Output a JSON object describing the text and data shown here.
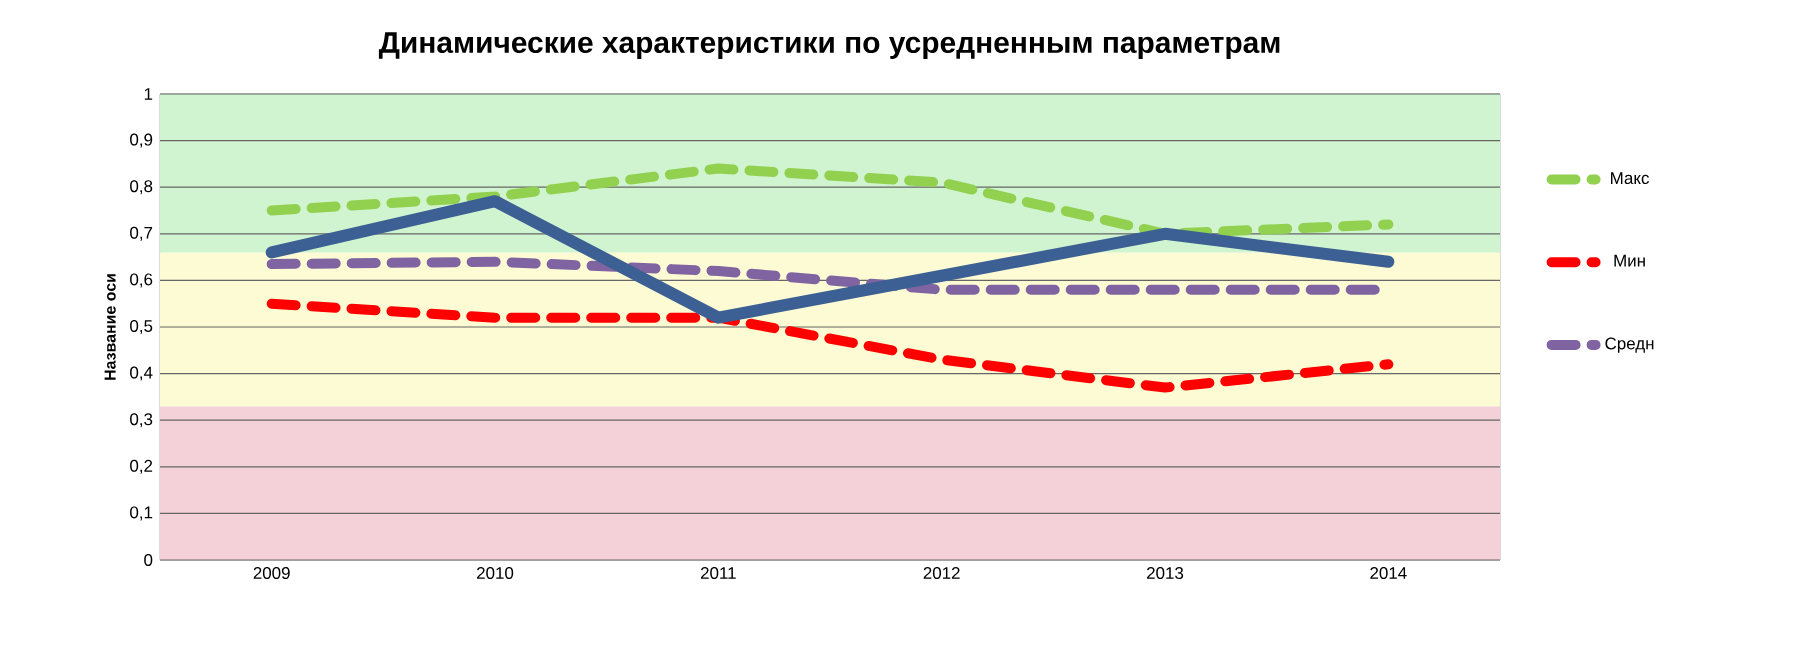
{
  "chart_data": {
    "type": "line",
    "title": "Динамические характеристики по усредненным параметрам",
    "ylabel": "Название оси",
    "categories": [
      "2009",
      "2010",
      "2011",
      "2012",
      "2013",
      "2014"
    ],
    "series": [
      {
        "name": "Макс",
        "color": "#92d050",
        "line_style": "dashed",
        "values": [
          0.75,
          0.78,
          0.84,
          0.81,
          0.7,
          0.72
        ]
      },
      {
        "name": "Мин",
        "color": "#ff0000",
        "line_style": "dashed",
        "values": [
          0.55,
          0.52,
          0.52,
          0.43,
          0.37,
          0.42
        ]
      },
      {
        "name": "Средн",
        "color": "#8064a2",
        "line_style": "dashed",
        "values": [
          0.635,
          0.64,
          0.62,
          0.58,
          0.58,
          0.58
        ]
      },
      {
        "color": "#3c5f94",
        "line_style": "solid",
        "values": [
          0.66,
          0.77,
          0.52,
          0.61,
          0.7,
          0.64
        ]
      }
    ],
    "ylim": [
      0,
      1
    ],
    "yticks": [
      0,
      {
        "value": 0.1,
        "label": "0,1"
      },
      {
        "value": 0.2,
        "label": "0,2"
      },
      {
        "value": 0.3,
        "label": "0,3"
      },
      {
        "value": 0.4,
        "label": "0,4"
      },
      {
        "value": 0.5,
        "label": "0,5"
      },
      {
        "value": 0.6,
        "label": "0,6"
      },
      {
        "value": 0.7,
        "label": "0,7"
      },
      {
        "value": 0.8,
        "label": "0,8"
      },
      {
        "value": 0.9,
        "label": "0,9"
      },
      1
    ],
    "bands": [
      {
        "axis": "y",
        "from": 0,
        "to": 0.33,
        "color": "#f4d0d9"
      },
      {
        "axis": "y",
        "from": 0.33,
        "to": 0.66,
        "color": "#fdfbd3"
      },
      {
        "axis": "y",
        "from": 0.66,
        "to": 1,
        "color": "#d0f4d0"
      }
    ],
    "grid": "y",
    "legend": "right",
    "marker": "none"
  }
}
